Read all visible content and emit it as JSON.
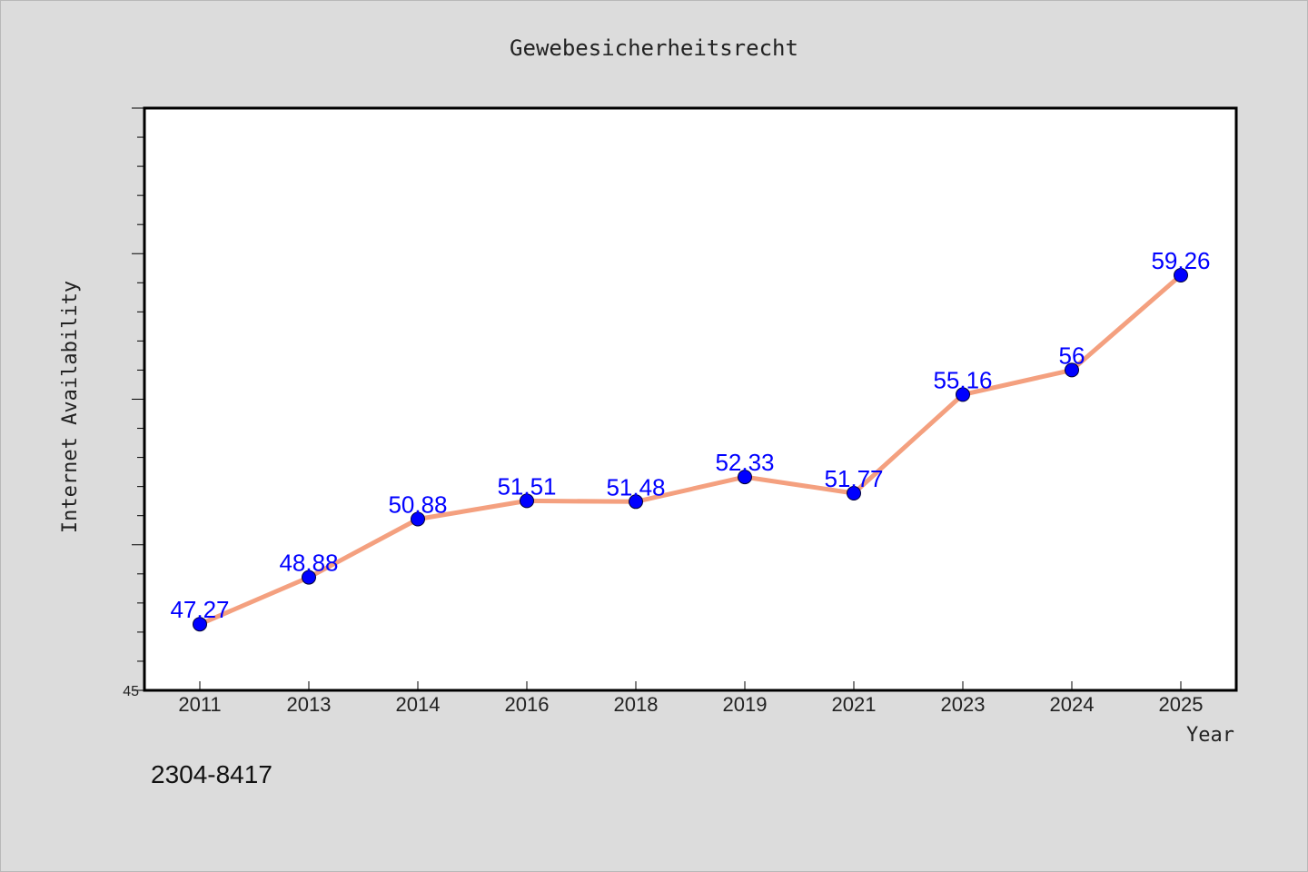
{
  "chart_data": {
    "type": "line",
    "title": "Gewebesicherheitsrecht",
    "xlabel": "Year",
    "ylabel": "Internet Availability",
    "categories": [
      "2011",
      "2013",
      "2014",
      "2016",
      "2018",
      "2019",
      "2021",
      "2023",
      "2024",
      "2025"
    ],
    "series": [
      {
        "values": [
          47.27,
          48.88,
          50.88,
          51.51,
          51.48,
          52.33,
          51.77,
          55.16,
          56,
          59.26
        ],
        "labels": [
          "47.27",
          "48.88",
          "50.88",
          "51.51",
          "51.48",
          "52.33",
          "51.77",
          "55.16",
          "56",
          "59.26"
        ]
      }
    ],
    "ylim": [
      45,
      65
    ],
    "y_tick_labels": [
      "45"
    ],
    "grid": false,
    "legend": "none"
  },
  "footnote": "2304-8417",
  "colors": {
    "background": "#dcdcdc",
    "plot_background": "#ffffff",
    "line": "#f4a07f",
    "marker": "#0000ff",
    "data_label": "#0000ff"
  }
}
